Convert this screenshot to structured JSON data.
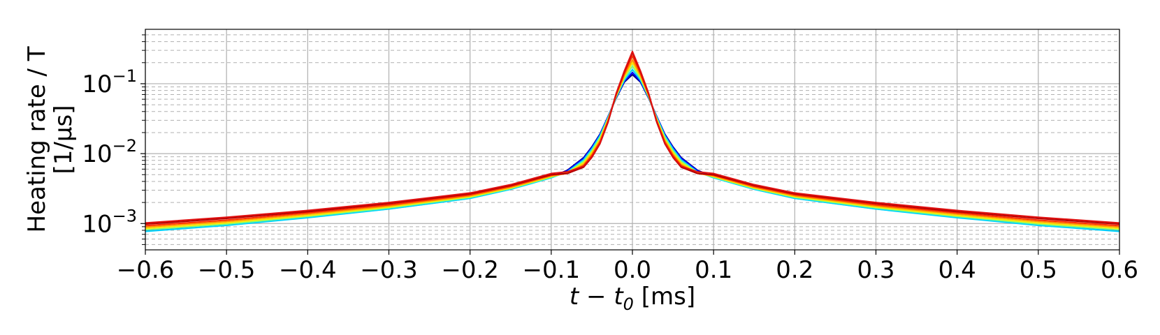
{
  "chart_data": {
    "type": "line",
    "title": "",
    "xlabel_math": "t − t",
    "xlabel_sub": "0",
    "xlabel_unit": " [ms]",
    "ylabel_lines": [
      "Heating rate / T",
      "[1/μs]"
    ],
    "xlim": [
      -0.6,
      0.6
    ],
    "ylim": [
      0.00042,
      0.6
    ],
    "yscale": "log",
    "grid": true,
    "legend": "none",
    "x_ticks": [
      -0.6,
      -0.5,
      -0.4,
      -0.3,
      -0.2,
      -0.1,
      0.0,
      0.1,
      0.2,
      0.3,
      0.4,
      0.5,
      0.6
    ],
    "x_tick_labels": [
      "−0.6",
      "−0.5",
      "−0.4",
      "−0.3",
      "−0.2",
      "−0.1",
      "0.0",
      "0.1",
      "0.2",
      "0.3",
      "0.4",
      "0.5",
      "0.6"
    ],
    "y_ticks": [
      {
        "value": 0.001,
        "base": "10",
        "exp": "−3"
      },
      {
        "value": 0.01,
        "base": "10",
        "exp": "−2"
      },
      {
        "value": 0.1,
        "base": "10",
        "exp": "−1"
      }
    ],
    "x": [
      -0.6,
      -0.5,
      -0.4,
      -0.3,
      -0.2,
      -0.15,
      -0.1,
      -0.08,
      -0.06,
      -0.05,
      -0.04,
      -0.03,
      -0.02,
      -0.01,
      0.0,
      0.01,
      0.02,
      0.03,
      0.04,
      0.05,
      0.06,
      0.08,
      0.1,
      0.15,
      0.2,
      0.3,
      0.4,
      0.5,
      0.6
    ],
    "series": [
      {
        "color": "#00007f",
        "values": [
          0.00078,
          0.00095,
          0.00122,
          0.00162,
          0.0023,
          0.0031,
          0.0046,
          0.0058,
          0.0088,
          0.0125,
          0.019,
          0.034,
          0.062,
          0.105,
          0.135,
          0.105,
          0.062,
          0.034,
          0.019,
          0.0125,
          0.0088,
          0.0058,
          0.0046,
          0.0031,
          0.0023,
          0.00162,
          0.00122,
          0.00095,
          0.00078
        ]
      },
      {
        "color": "#0000ff",
        "values": [
          0.00079,
          0.00096,
          0.00123,
          0.00163,
          0.00231,
          0.00311,
          0.0046,
          0.0057,
          0.0086,
          0.0122,
          0.0186,
          0.034,
          0.063,
          0.108,
          0.145,
          0.108,
          0.063,
          0.034,
          0.0186,
          0.0122,
          0.0086,
          0.0057,
          0.0046,
          0.00311,
          0.00231,
          0.00163,
          0.00123,
          0.00096,
          0.00079
        ]
      },
      {
        "color": "#00d4ff",
        "values": [
          0.00077,
          0.00094,
          0.00121,
          0.00161,
          0.00229,
          0.00308,
          0.0045,
          0.0055,
          0.0082,
          0.0117,
          0.018,
          0.033,
          0.064,
          0.112,
          0.16,
          0.112,
          0.064,
          0.033,
          0.018,
          0.0117,
          0.0082,
          0.0055,
          0.0045,
          0.00308,
          0.00229,
          0.00161,
          0.00121,
          0.00094,
          0.00077
        ]
      },
      {
        "color": "#7dff7a",
        "values": [
          0.00081,
          0.00098,
          0.00126,
          0.00167,
          0.00236,
          0.00316,
          0.0046,
          0.0054,
          0.0078,
          0.011,
          0.017,
          0.032,
          0.065,
          0.118,
          0.18,
          0.118,
          0.065,
          0.032,
          0.017,
          0.011,
          0.0078,
          0.0054,
          0.0046,
          0.00316,
          0.00236,
          0.00167,
          0.00126,
          0.00098,
          0.00081
        ]
      },
      {
        "color": "#ffe600",
        "values": [
          0.00085,
          0.00102,
          0.0013,
          0.00172,
          0.00242,
          0.00322,
          0.0047,
          0.0053,
          0.0074,
          0.0104,
          0.016,
          0.031,
          0.067,
          0.125,
          0.2,
          0.125,
          0.067,
          0.031,
          0.016,
          0.0104,
          0.0074,
          0.0053,
          0.0047,
          0.00322,
          0.00242,
          0.00172,
          0.0013,
          0.00102,
          0.00085
        ]
      },
      {
        "color": "#ff9400",
        "values": [
          0.00089,
          0.00107,
          0.00136,
          0.00178,
          0.00249,
          0.0033,
          0.0048,
          0.0052,
          0.007,
          0.0098,
          0.0152,
          0.03,
          0.068,
          0.132,
          0.22,
          0.132,
          0.068,
          0.03,
          0.0152,
          0.0098,
          0.007,
          0.0052,
          0.0048,
          0.0033,
          0.00249,
          0.00178,
          0.00136,
          0.00107,
          0.00089
        ]
      },
      {
        "color": "#ff2b00",
        "values": [
          0.00093,
          0.00112,
          0.00142,
          0.00185,
          0.00257,
          0.0034,
          0.0049,
          0.0052,
          0.0067,
          0.0093,
          0.0145,
          0.029,
          0.07,
          0.14,
          0.25,
          0.14,
          0.07,
          0.029,
          0.0145,
          0.0093,
          0.0067,
          0.0052,
          0.0049,
          0.0034,
          0.00257,
          0.00185,
          0.00142,
          0.00112,
          0.00093
        ]
      },
      {
        "color": "#b30000",
        "values": [
          0.00098,
          0.00118,
          0.00148,
          0.00193,
          0.00266,
          0.0035,
          0.005,
          0.0052,
          0.0064,
          0.0088,
          0.0138,
          0.028,
          0.071,
          0.148,
          0.28,
          0.148,
          0.071,
          0.028,
          0.0138,
          0.0088,
          0.0064,
          0.0052,
          0.005,
          0.0035,
          0.00266,
          0.00193,
          0.00148,
          0.00118,
          0.00098
        ]
      },
      {
        "color": "#e01010",
        "values": [
          0.00102,
          0.00123,
          0.00154,
          0.002,
          0.00274,
          0.0036,
          0.0052,
          0.0055,
          0.0066,
          0.009,
          0.014,
          0.029,
          0.073,
          0.152,
          0.29,
          0.152,
          0.073,
          0.029,
          0.014,
          0.009,
          0.0066,
          0.0055,
          0.0052,
          0.0036,
          0.00274,
          0.002,
          0.00154,
          0.00123,
          0.00102
        ]
      }
    ]
  }
}
